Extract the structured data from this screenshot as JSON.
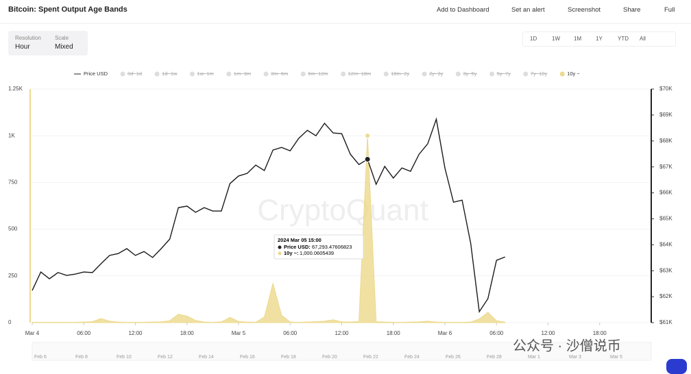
{
  "header": {
    "title": "Bitcoin: Spent Output Age Bands",
    "actions": [
      "Add to Dashboard",
      "Set an alert",
      "Screenshot",
      "Share",
      "Full"
    ]
  },
  "controls": {
    "resolution_label": "Resolution",
    "resolution": "Hour",
    "scale_label": "Scale",
    "scale": "Mixed"
  },
  "ranges": [
    "1D",
    "1W",
    "1M",
    "1Y",
    "YTD",
    "All"
  ],
  "watermark": "CryptoQuant",
  "overlay": "公众号 · 沙僧说币",
  "tooltip": {
    "title": "2024 Mar 05 15:00",
    "rows": [
      {
        "name": "Price USD:",
        "value": "67,293.47606823"
      },
      {
        "name": "10y ~:",
        "value": "1,000.0605439"
      }
    ]
  },
  "navigator": {
    "labels": [
      "Feb 6",
      "Feb 8",
      "Feb 10",
      "Feb 12",
      "Feb 14",
      "Feb 16",
      "Feb 18",
      "Feb 20",
      "Feb 22",
      "Feb 24",
      "Feb 26",
      "Feb 28",
      "Mar 1",
      "Mar 3",
      "Mar 5"
    ]
  },
  "chart_data": {
    "type": "line",
    "legend_items": [
      {
        "name": "Price USD",
        "enabled": true
      },
      {
        "name": "0d~1d",
        "enabled": false
      },
      {
        "name": "1d~1w",
        "enabled": false
      },
      {
        "name": "1w~1m",
        "enabled": false
      },
      {
        "name": "1m~3m",
        "enabled": false
      },
      {
        "name": "3m~6m",
        "enabled": false
      },
      {
        "name": "6m~12m",
        "enabled": false
      },
      {
        "name": "12m~18m",
        "enabled": false
      },
      {
        "name": "18m~2y",
        "enabled": false
      },
      {
        "name": "2y~3y",
        "enabled": false
      },
      {
        "name": "3y~5y",
        "enabled": false
      },
      {
        "name": "5y~7y",
        "enabled": false
      },
      {
        "name": "7y~10y",
        "enabled": false
      },
      {
        "name": "10y ~",
        "enabled": true
      }
    ],
    "x": [
      0,
      1,
      2,
      3,
      4,
      5,
      6,
      7,
      8,
      9,
      10,
      11,
      12,
      13,
      14,
      15,
      16,
      17,
      18,
      19,
      20,
      21,
      22,
      23,
      24,
      25,
      26,
      27,
      28,
      29,
      30,
      31,
      32,
      33,
      34,
      35,
      36,
      37,
      38,
      39,
      40,
      41,
      42,
      43,
      44,
      45,
      46,
      47,
      48,
      49,
      50,
      51,
      52,
      53,
      54,
      55
    ],
    "xlim": [
      0,
      72
    ],
    "xticks": [
      {
        "value": 0,
        "label": "Mar 4"
      },
      {
        "value": 6,
        "label": "06:00"
      },
      {
        "value": 12,
        "label": "12:00"
      },
      {
        "value": 18,
        "label": "18:00"
      },
      {
        "value": 24,
        "label": "Mar 5"
      },
      {
        "value": 30,
        "label": "06:00"
      },
      {
        "value": 36,
        "label": "12:00"
      },
      {
        "value": 42,
        "label": "18:00"
      },
      {
        "value": 48,
        "label": "Mar 6"
      },
      {
        "value": 54,
        "label": "06:00"
      },
      {
        "value": 60,
        "label": "12:00"
      },
      {
        "value": 66,
        "label": "18:00"
      }
    ],
    "ylim": [
      0,
      1250
    ],
    "yticks": [
      0,
      250,
      500,
      750,
      {
        "value": 1000,
        "label": "1K"
      },
      {
        "value": 1250,
        "label": "1.25K"
      }
    ],
    "y2lim": [
      61000,
      70000
    ],
    "y2ticks": [
      {
        "value": 61000,
        "label": "$61K"
      },
      {
        "value": 62000,
        "label": "$62K"
      },
      {
        "value": 63000,
        "label": "$63K"
      },
      {
        "value": 64000,
        "label": "$64K"
      },
      {
        "value": 65000,
        "label": "$65K"
      },
      {
        "value": 66000,
        "label": "$66K"
      },
      {
        "value": 67000,
        "label": "$67K"
      },
      {
        "value": 68000,
        "label": "$68K"
      },
      {
        "value": 69000,
        "label": "$69K"
      },
      {
        "value": 70000,
        "label": "$70K"
      }
    ],
    "series": [
      {
        "name": "Price USD",
        "color": "#1a1a1a",
        "axis": "y2",
        "values": [
          62240,
          62950,
          62690,
          62930,
          62820,
          62870,
          62950,
          62930,
          63270,
          63590,
          63660,
          63850,
          63590,
          63740,
          63510,
          63850,
          64220,
          65430,
          65490,
          65250,
          65430,
          65300,
          65300,
          66360,
          66650,
          66750,
          67070,
          66860,
          67650,
          67750,
          67620,
          68100,
          68410,
          68200,
          68680,
          68310,
          68280,
          67490,
          67090,
          67293.47606823,
          66330,
          67020,
          66570,
          66960,
          66830,
          67490,
          67890,
          68840,
          66960,
          65640,
          65720,
          64060,
          61420,
          61920,
          63400,
          63530
        ]
      },
      {
        "name": "10y ~",
        "color": "#ecd98c",
        "values": [
          2,
          2,
          2,
          2,
          2,
          2,
          3,
          5,
          22,
          8,
          3,
          2,
          2,
          2,
          3,
          4,
          10,
          45,
          35,
          12,
          3,
          2,
          4,
          28,
          6,
          3,
          2,
          30,
          210,
          40,
          3,
          2,
          3,
          5,
          8,
          15,
          4,
          3,
          6,
          1000.0605439,
          5,
          3,
          2,
          2,
          3,
          4,
          8,
          3,
          2,
          2,
          2,
          3,
          20,
          55,
          10,
          2
        ]
      }
    ]
  }
}
